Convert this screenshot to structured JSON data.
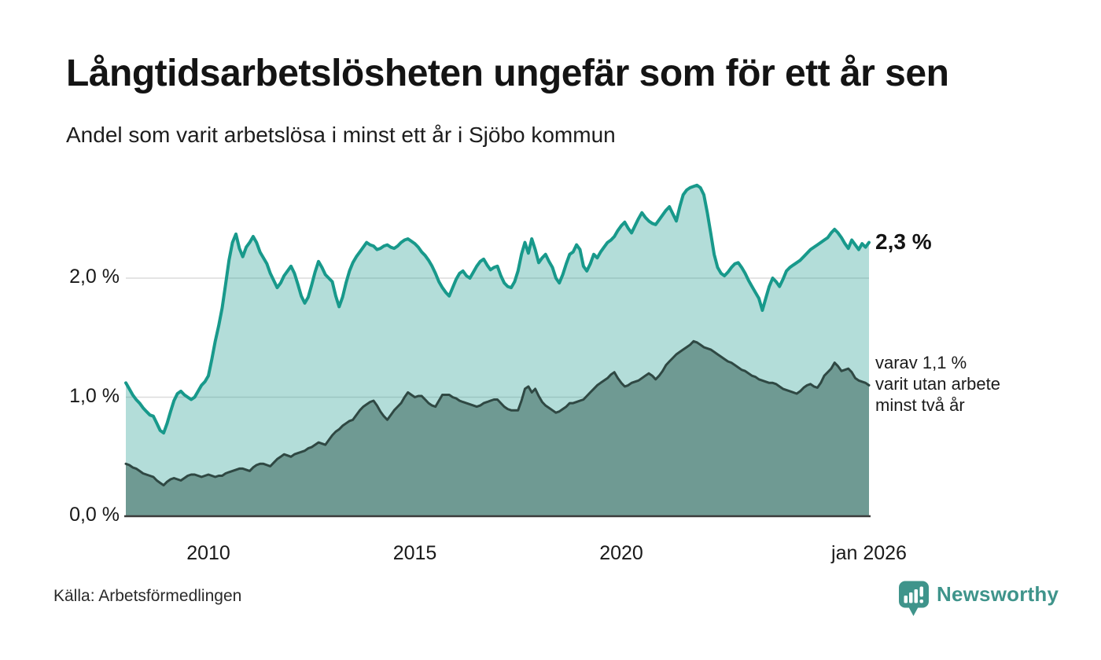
{
  "header": {
    "title": "Långtidsarbetslösheten ungefär som för ett år sen",
    "subtitle": "Andel som varit arbetslösa i minst ett år i Sjöbo kommun"
  },
  "annotations": {
    "latest_total_label": "2,3 %",
    "two_year_note": "varav 1,1 %\nvarit utan arbete\nminst två år"
  },
  "footer": {
    "source": "Källa: Arbetsförmedlingen",
    "brand": "Newsworthy"
  },
  "colors": {
    "teal_line": "#18998b",
    "teal_fill": "rgba(24,153,139,0.33)",
    "dark_line": "#2f4843",
    "dark_fill": "#6f9a93",
    "grid": "#dcdcdc",
    "axis": "#3b3b3b",
    "logo": "#3f948b",
    "text": "#141414"
  },
  "chart_data": {
    "type": "area",
    "title": "Långtidsarbetslösheten ungefär som för ett år sen",
    "subtitle": "Andel som varit arbetslösa i minst ett år i Sjöbo kommun",
    "unit": "%",
    "grid": "horizontal",
    "x_range": [
      2008,
      2026
    ],
    "ylim": [
      0,
      2.82
    ],
    "x_start": 2008,
    "x_step_years": 0.0833333,
    "y_ticks": [
      {
        "value": 0,
        "label": "0,0 %"
      },
      {
        "value": 1,
        "label": "1,0 %"
      },
      {
        "value": 2,
        "label": "2,0 %"
      }
    ],
    "x_ticks": [
      {
        "value": 2010,
        "label": "2010"
      },
      {
        "value": 2015,
        "label": "2015"
      },
      {
        "value": 2020,
        "label": "2020"
      },
      {
        "value": 2026,
        "label": "jan 2026"
      }
    ],
    "series": [
      {
        "name": "Arbetslösa minst ett år",
        "latest_value": 2.3,
        "values": [
          1.12,
          1.07,
          1.02,
          0.98,
          0.95,
          0.91,
          0.88,
          0.85,
          0.84,
          0.78,
          0.72,
          0.7,
          0.78,
          0.88,
          0.97,
          1.03,
          1.05,
          1.02,
          1.0,
          0.98,
          1.0,
          1.05,
          1.1,
          1.13,
          1.18,
          1.32,
          1.47,
          1.6,
          1.75,
          1.95,
          2.15,
          2.3,
          2.37,
          2.25,
          2.18,
          2.26,
          2.3,
          2.35,
          2.3,
          2.22,
          2.17,
          2.12,
          2.04,
          1.98,
          1.92,
          1.96,
          2.02,
          2.06,
          2.1,
          2.04,
          1.95,
          1.85,
          1.79,
          1.84,
          1.94,
          2.05,
          2.14,
          2.09,
          2.03,
          2.0,
          1.97,
          1.85,
          1.76,
          1.84,
          1.96,
          2.06,
          2.13,
          2.18,
          2.22,
          2.26,
          2.3,
          2.28,
          2.27,
          2.24,
          2.25,
          2.27,
          2.28,
          2.26,
          2.25,
          2.27,
          2.3,
          2.32,
          2.33,
          2.31,
          2.29,
          2.26,
          2.22,
          2.19,
          2.15,
          2.1,
          2.04,
          1.97,
          1.92,
          1.88,
          1.85,
          1.92,
          1.99,
          2.04,
          2.06,
          2.02,
          2.0,
          2.05,
          2.1,
          2.14,
          2.16,
          2.11,
          2.07,
          2.09,
          2.1,
          2.02,
          1.96,
          1.93,
          1.92,
          1.97,
          2.06,
          2.2,
          2.3,
          2.21,
          2.33,
          2.24,
          2.13,
          2.17,
          2.2,
          2.14,
          2.09,
          2.0,
          1.96,
          2.03,
          2.12,
          2.2,
          2.22,
          2.28,
          2.24,
          2.1,
          2.06,
          2.12,
          2.2,
          2.17,
          2.22,
          2.26,
          2.3,
          2.32,
          2.35,
          2.4,
          2.44,
          2.47,
          2.42,
          2.38,
          2.44,
          2.5,
          2.55,
          2.51,
          2.48,
          2.46,
          2.45,
          2.49,
          2.53,
          2.57,
          2.6,
          2.54,
          2.48,
          2.6,
          2.7,
          2.74,
          2.76,
          2.77,
          2.78,
          2.76,
          2.7,
          2.55,
          2.38,
          2.2,
          2.09,
          2.04,
          2.02,
          2.05,
          2.09,
          2.12,
          2.13,
          2.09,
          2.04,
          1.98,
          1.93,
          1.88,
          1.83,
          1.73,
          1.83,
          1.93,
          2.0,
          1.97,
          1.93,
          1.99,
          2.06,
          2.09,
          2.11,
          2.13,
          2.15,
          2.18,
          2.21,
          2.24,
          2.26,
          2.28,
          2.3,
          2.32,
          2.34,
          2.38,
          2.41,
          2.38,
          2.34,
          2.29,
          2.25,
          2.32,
          2.28,
          2.24,
          2.29,
          2.26,
          2.3
        ]
      },
      {
        "name": "Arbetslösa minst två år",
        "latest_value": 1.1,
        "values": [
          0.44,
          0.43,
          0.41,
          0.4,
          0.38,
          0.36,
          0.35,
          0.34,
          0.33,
          0.3,
          0.28,
          0.26,
          0.29,
          0.31,
          0.32,
          0.31,
          0.3,
          0.32,
          0.34,
          0.35,
          0.35,
          0.34,
          0.33,
          0.34,
          0.35,
          0.34,
          0.33,
          0.34,
          0.34,
          0.36,
          0.37,
          0.38,
          0.39,
          0.4,
          0.4,
          0.39,
          0.38,
          0.41,
          0.43,
          0.44,
          0.44,
          0.43,
          0.42,
          0.45,
          0.48,
          0.5,
          0.52,
          0.51,
          0.5,
          0.52,
          0.53,
          0.54,
          0.55,
          0.57,
          0.58,
          0.6,
          0.62,
          0.61,
          0.6,
          0.64,
          0.68,
          0.71,
          0.73,
          0.76,
          0.78,
          0.8,
          0.81,
          0.85,
          0.89,
          0.92,
          0.94,
          0.96,
          0.97,
          0.93,
          0.88,
          0.84,
          0.81,
          0.85,
          0.89,
          0.92,
          0.95,
          1.0,
          1.04,
          1.02,
          1.0,
          1.01,
          1.01,
          0.98,
          0.95,
          0.93,
          0.92,
          0.97,
          1.02,
          1.02,
          1.02,
          1.0,
          0.99,
          0.97,
          0.96,
          0.95,
          0.94,
          0.93,
          0.92,
          0.93,
          0.95,
          0.96,
          0.97,
          0.98,
          0.98,
          0.95,
          0.92,
          0.9,
          0.89,
          0.89,
          0.89,
          0.97,
          1.07,
          1.09,
          1.04,
          1.07,
          1.01,
          0.96,
          0.93,
          0.91,
          0.89,
          0.87,
          0.88,
          0.9,
          0.92,
          0.95,
          0.95,
          0.96,
          0.97,
          0.98,
          1.01,
          1.04,
          1.07,
          1.1,
          1.12,
          1.14,
          1.16,
          1.19,
          1.21,
          1.16,
          1.12,
          1.09,
          1.1,
          1.12,
          1.13,
          1.14,
          1.16,
          1.18,
          1.2,
          1.18,
          1.15,
          1.18,
          1.22,
          1.27,
          1.3,
          1.33,
          1.36,
          1.38,
          1.4,
          1.42,
          1.44,
          1.47,
          1.46,
          1.44,
          1.42,
          1.41,
          1.4,
          1.38,
          1.36,
          1.34,
          1.32,
          1.3,
          1.29,
          1.27,
          1.25,
          1.23,
          1.22,
          1.2,
          1.18,
          1.17,
          1.15,
          1.14,
          1.13,
          1.12,
          1.12,
          1.11,
          1.09,
          1.07,
          1.06,
          1.05,
          1.04,
          1.03,
          1.05,
          1.08,
          1.1,
          1.11,
          1.09,
          1.08,
          1.12,
          1.18,
          1.21,
          1.24,
          1.29,
          1.26,
          1.22,
          1.23,
          1.24,
          1.21,
          1.16,
          1.14,
          1.13,
          1.12,
          1.1
        ]
      }
    ]
  }
}
